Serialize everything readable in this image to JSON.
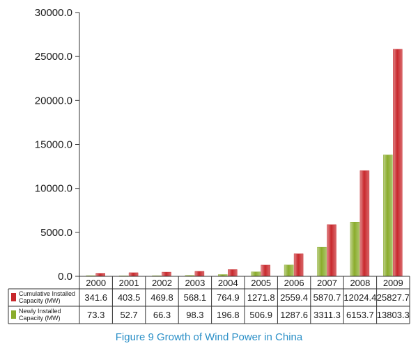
{
  "caption": "Figure 9   Growth of Wind Power in China",
  "chart_data": {
    "type": "bar",
    "categories": [
      "2000",
      "2001",
      "2002",
      "2003",
      "2004",
      "2005",
      "2006",
      "2007",
      "2008",
      "2009"
    ],
    "series": [
      {
        "name": "Cumulative Installed Capacity (MW)",
        "color": "#c8282c",
        "values": [
          341.6,
          403.5,
          469.8,
          568.1,
          764.9,
          1271.8,
          2559.4,
          5870.7,
          12024.4,
          25827.7
        ],
        "labels": [
          "341.6",
          "403.5",
          "469.8",
          "568.1",
          "764.9",
          "1271.8",
          "2559.4",
          "5870.7",
          "12024.4",
          "25827.7"
        ]
      },
      {
        "name": "Newly Installed Capacity (MW)",
        "color": "#8aac2c",
        "values": [
          73.3,
          52.7,
          66.3,
          98.3,
          196.8,
          506.9,
          1287.6,
          3311.3,
          6153.7,
          13803.3
        ],
        "labels": [
          "73.3",
          "52.7",
          "66.3",
          "98.3",
          "196.8",
          "506.9",
          "1287.6",
          "3311.3",
          "6153.7",
          "13803.3"
        ]
      }
    ],
    "ylim": [
      0,
      30000
    ],
    "yticks": [
      "0.0",
      "5000.0",
      "10000.0",
      "15000.0",
      "20000.0",
      "25000.0",
      "30000.0"
    ],
    "grid": false,
    "legend": "data-table"
  }
}
